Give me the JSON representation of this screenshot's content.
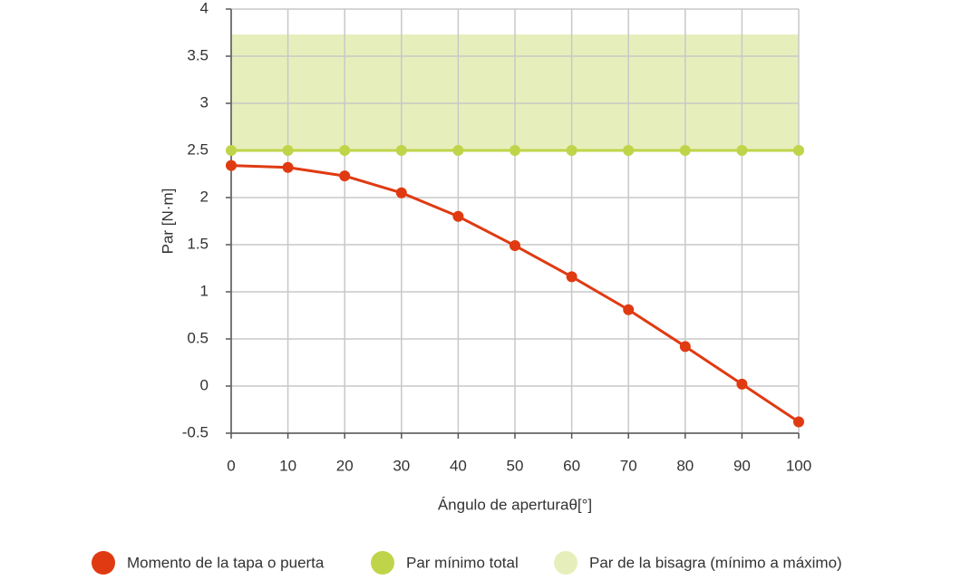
{
  "chart_data": {
    "type": "line",
    "x_label": "Ángulo de aperturaθ[°]",
    "y_label": "Par [N·m]",
    "x": [
      0,
      10,
      20,
      30,
      40,
      50,
      60,
      70,
      80,
      90,
      100
    ],
    "series": [
      {
        "name": "Momento de la tapa o puerta",
        "color": "#e03a12",
        "values": [
          2.34,
          2.32,
          2.23,
          2.05,
          1.8,
          1.49,
          1.16,
          0.81,
          0.42,
          0.02,
          -0.38
        ]
      },
      {
        "name": "Par mínimo total",
        "color": "#c0d44a",
        "values": [
          2.5,
          2.5,
          2.5,
          2.5,
          2.5,
          2.5,
          2.5,
          2.5,
          2.5,
          2.5,
          2.5
        ]
      }
    ],
    "band": {
      "name": "Par de la bisagra (mínimo a máximo)",
      "color": "#e6efbb",
      "lower": 2.5,
      "upper": 3.73
    },
    "xlim": [
      0,
      100
    ],
    "xticks": [
      0,
      10,
      20,
      30,
      40,
      50,
      60,
      70,
      80,
      90,
      100
    ],
    "ylim": [
      -0.5,
      4
    ],
    "yticks": [
      -0.5,
      0,
      0.5,
      1,
      1.5,
      2,
      2.5,
      3,
      3.5,
      4
    ],
    "grid": true
  }
}
